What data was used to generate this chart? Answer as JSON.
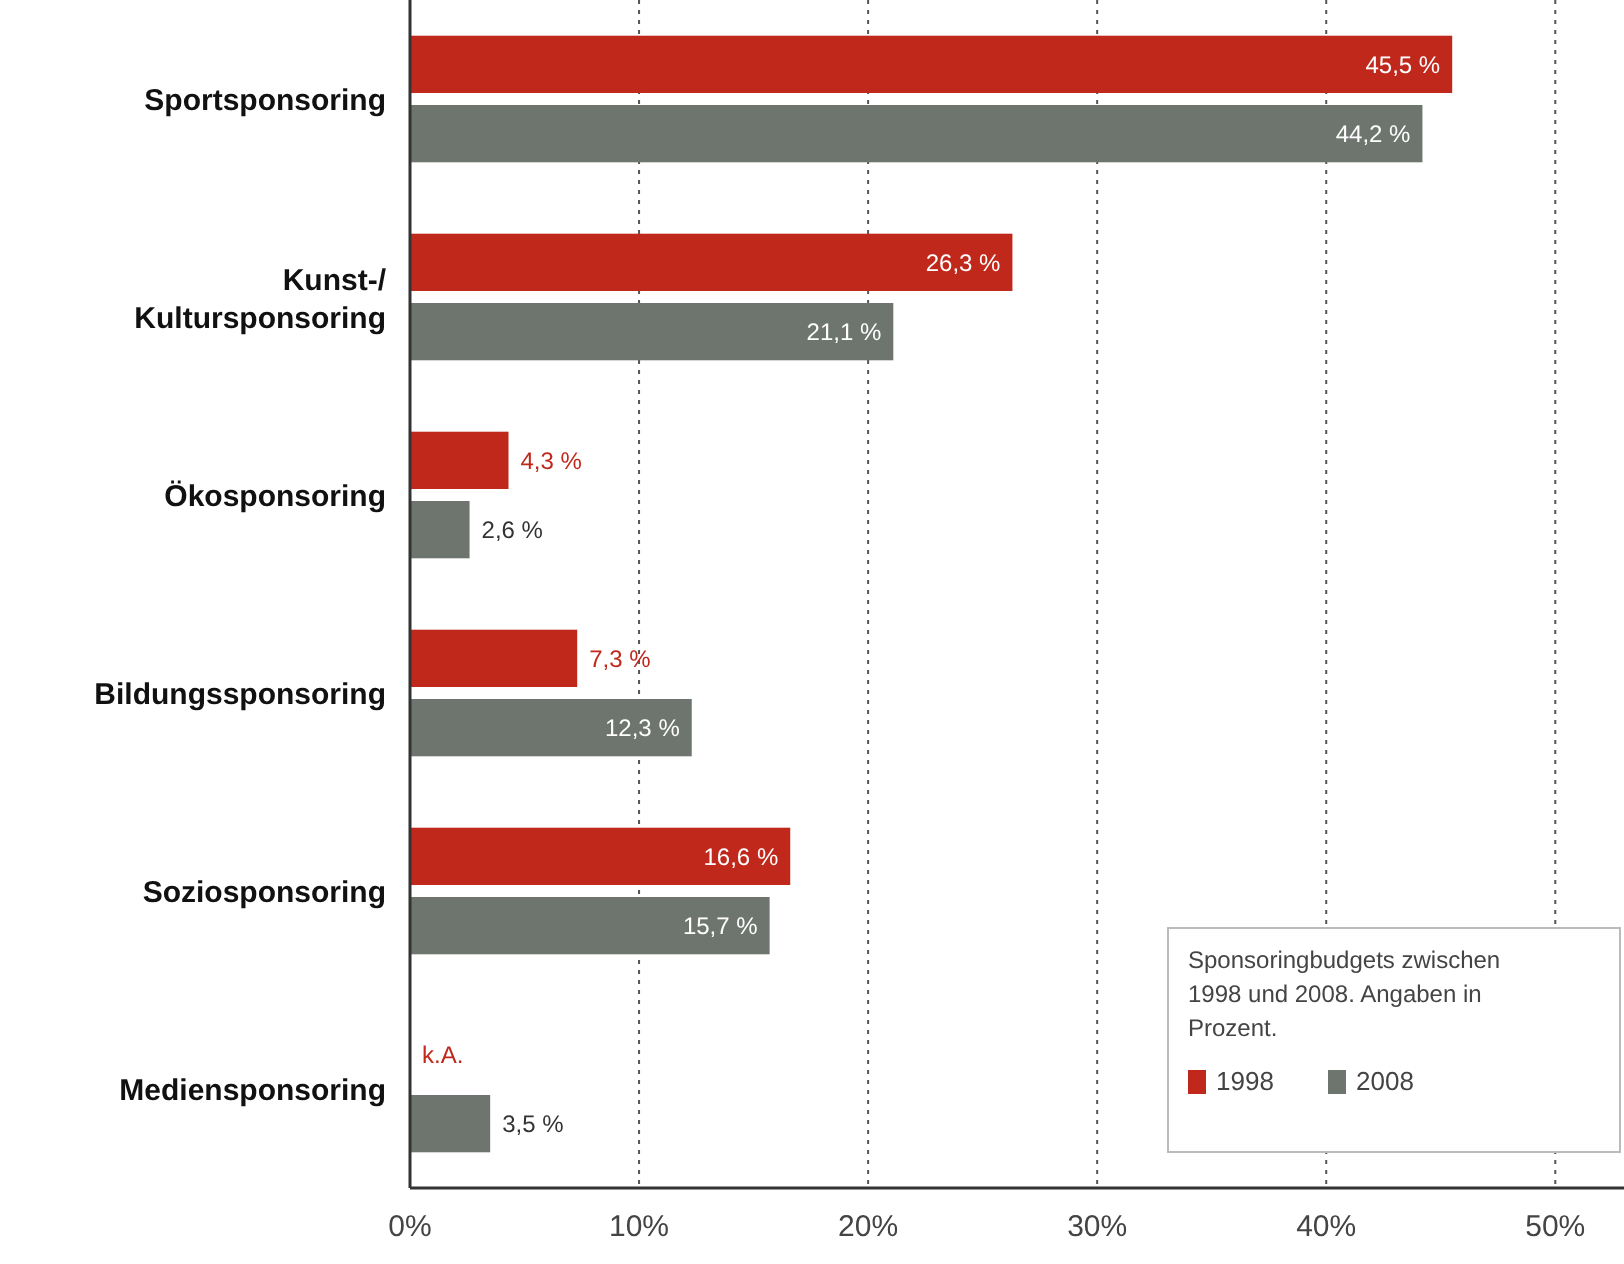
{
  "chart_data": {
    "type": "bar",
    "orientation": "horizontal",
    "categories": [
      "Sportsponsoring",
      "Kunst-/ Kultursponsoring",
      "Ökosponsoring",
      "Bildungssponsoring",
      "Soziosponsoring",
      "Mediensponsoring"
    ],
    "series": [
      {
        "name": "1998",
        "color": "#c0281c",
        "values": [
          45.5,
          26.3,
          4.3,
          7.3,
          16.6,
          null
        ],
        "value_labels": [
          "45,5 %",
          "26,3 %",
          "4,3 %",
          "7,3 %",
          "16,6 %",
          "k.A."
        ]
      },
      {
        "name": "2008",
        "color": "#6e756f",
        "values": [
          44.2,
          21.1,
          2.6,
          12.3,
          15.7,
          3.5
        ],
        "value_labels": [
          "44,2 %",
          "21,1 %",
          "2,6 %",
          "12,3 %",
          "15,7 %",
          "3,5 %"
        ]
      }
    ],
    "xlim": [
      0,
      53
    ],
    "xticks": [
      {
        "value": 0,
        "label": "0%"
      },
      {
        "value": 10,
        "label": "10%"
      },
      {
        "value": 20,
        "label": "20%"
      },
      {
        "value": 30,
        "label": "30%"
      },
      {
        "value": 40,
        "label": "40%"
      },
      {
        "value": 50,
        "label": "50%"
      }
    ],
    "grid": "x",
    "legend": "bottom right",
    "legend_title": "Sponsoringbudgets zwischen 1998 und 2008. Angaben in Prozent."
  }
}
